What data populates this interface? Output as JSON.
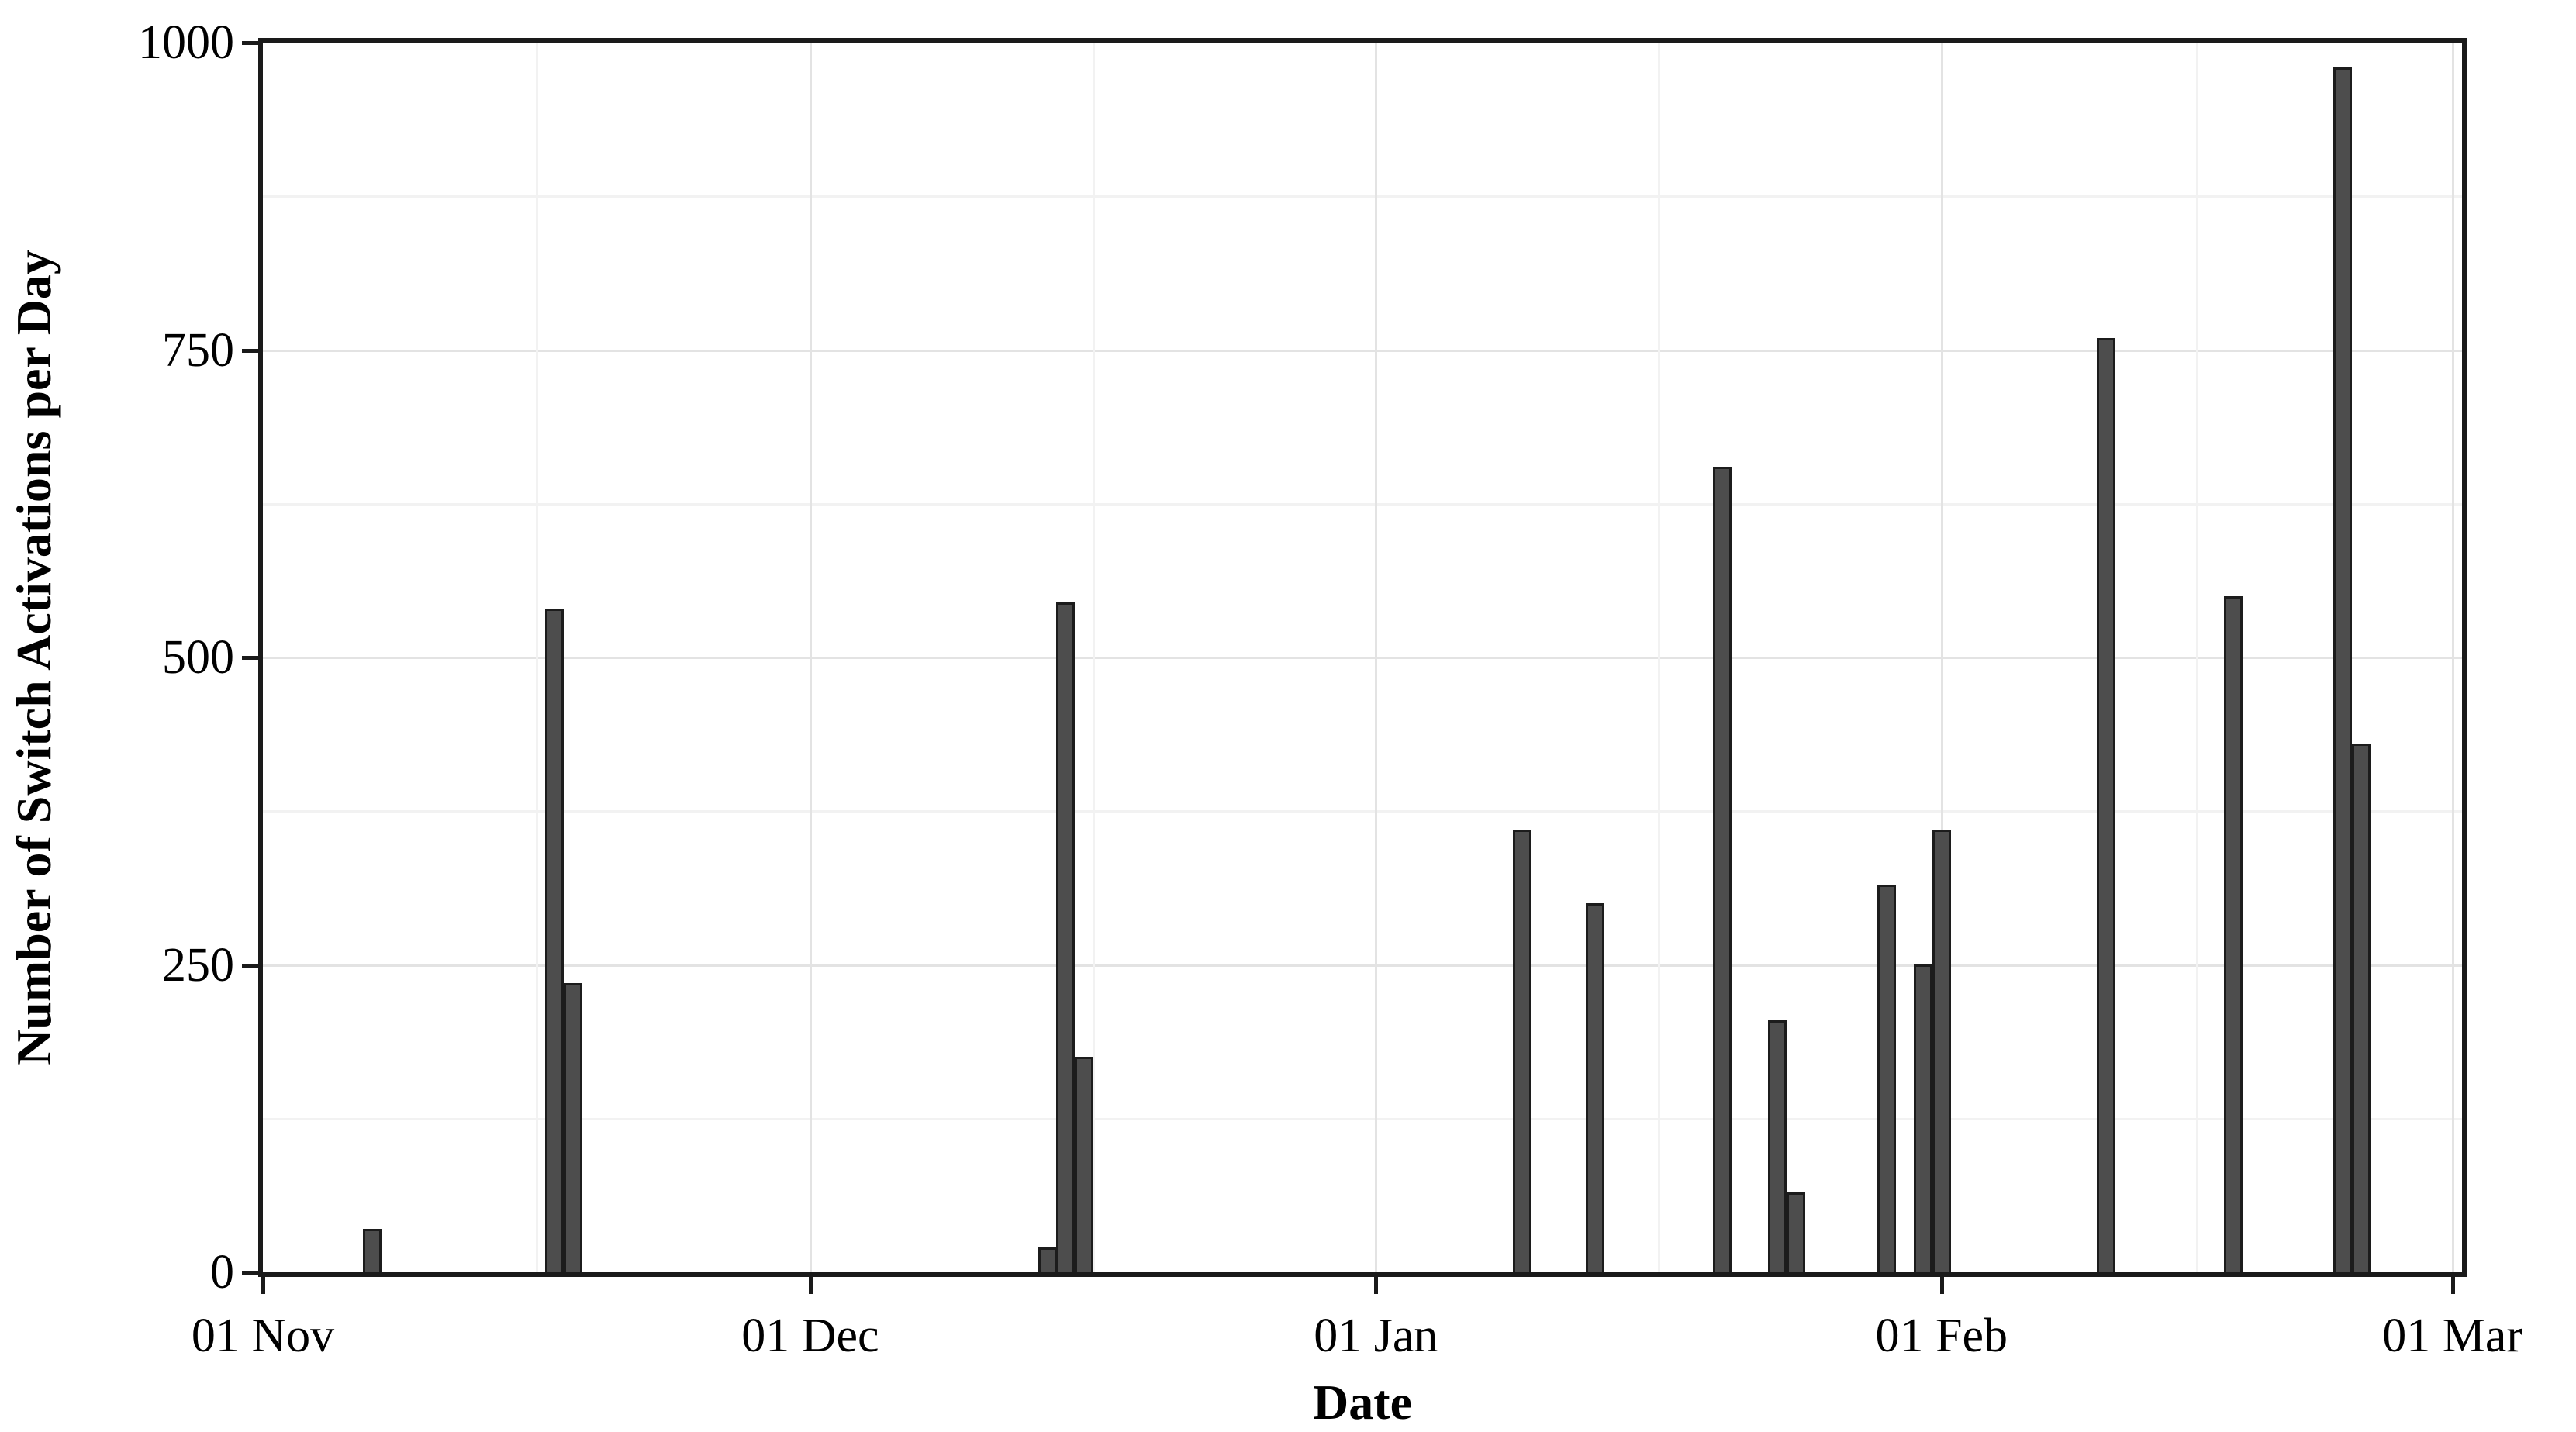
{
  "chart_data": {
    "type": "bar",
    "title": "",
    "xlabel": "Date",
    "ylabel": "Number of Switch Activations per Day",
    "x_tick_labels": [
      "01 Nov",
      "01 Dec",
      "01 Jan",
      "01 Feb",
      "01 Mar"
    ],
    "x_tick_days": [
      0,
      30,
      61,
      92,
      120
    ],
    "x_minor_days": [
      15,
      45.5,
      76.5,
      106
    ],
    "y_ticks": [
      0,
      250,
      500,
      750,
      1000
    ],
    "y_minor_ticks": [
      125,
      375,
      625,
      875
    ],
    "ylim": [
      0,
      1000
    ],
    "xlim_days": [
      0,
      120.5
    ],
    "grid": "on",
    "legend": "none",
    "bar_width_days": 1,
    "points": [
      {
        "date": "07 Nov",
        "day": 6,
        "value": 35
      },
      {
        "date": "17 Nov",
        "day": 16,
        "value": 540
      },
      {
        "date": "18 Nov",
        "day": 17,
        "value": 235
      },
      {
        "date": "14 Dec",
        "day": 43,
        "value": 20
      },
      {
        "date": "15 Dec",
        "day": 44,
        "value": 545
      },
      {
        "date": "16 Dec",
        "day": 45,
        "value": 175
      },
      {
        "date": "09 Jan",
        "day": 69,
        "value": 360
      },
      {
        "date": "13 Jan",
        "day": 73,
        "value": 300
      },
      {
        "date": "20 Jan",
        "day": 80,
        "value": 655
      },
      {
        "date": "23 Jan",
        "day": 83,
        "value": 205
      },
      {
        "date": "24 Jan",
        "day": 84,
        "value": 65
      },
      {
        "date": "29 Jan",
        "day": 89,
        "value": 315
      },
      {
        "date": "31 Jan",
        "day": 91,
        "value": 250
      },
      {
        "date": "01 Feb",
        "day": 92,
        "value": 360
      },
      {
        "date": "10 Feb",
        "day": 101,
        "value": 760
      },
      {
        "date": "17 Feb",
        "day": 108,
        "value": 550
      },
      {
        "date": "23 Feb",
        "day": 114,
        "value": 980
      },
      {
        "date": "24 Feb",
        "day": 115,
        "value": 430
      }
    ],
    "colors": {
      "bar_fill": "#4d4d4d",
      "bar_edge": "#1c1c1c",
      "axis": "#1a1a1a",
      "grid_major": "#e3e3e3",
      "grid_minor": "#f2f2f2",
      "background": "#ffffff",
      "text": "#000000"
    }
  }
}
